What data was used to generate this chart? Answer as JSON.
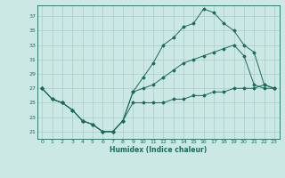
{
  "xlabel": "Humidex (Indice chaleur)",
  "background_color": "#cce8e4",
  "grid_color": "#aaccca",
  "line_color": "#1a6b5a",
  "xlim": [
    -0.5,
    23.5
  ],
  "ylim": [
    20.0,
    38.5
  ],
  "xticks": [
    0,
    1,
    2,
    3,
    4,
    5,
    6,
    7,
    8,
    9,
    10,
    11,
    12,
    13,
    14,
    15,
    16,
    17,
    18,
    19,
    20,
    21,
    22,
    23
  ],
  "yticks": [
    21,
    23,
    25,
    27,
    29,
    31,
    33,
    35,
    37
  ],
  "hours": [
    0,
    1,
    2,
    3,
    4,
    5,
    6,
    7,
    8,
    9,
    10,
    11,
    12,
    13,
    14,
    15,
    16,
    17,
    18,
    19,
    20,
    21,
    22,
    23
  ],
  "line_max": [
    27,
    25.5,
    25,
    24,
    22.5,
    22,
    21,
    21,
    22.5,
    26.5,
    28.5,
    30.5,
    33,
    34,
    35.5,
    36,
    38,
    37.5,
    36,
    35,
    33,
    32,
    27.5,
    27
  ],
  "line_min": [
    27,
    25.5,
    25,
    24,
    22.5,
    22,
    21,
    21,
    22.5,
    25,
    25,
    25,
    25,
    25.5,
    25.5,
    26,
    26,
    26.5,
    26.5,
    27,
    27,
    27,
    27.5,
    27
  ],
  "line_mean": [
    27,
    25.5,
    25,
    24,
    22.5,
    22,
    21,
    21,
    22.5,
    26.5,
    27,
    27.5,
    28.5,
    29.5,
    30.5,
    31,
    31.5,
    32,
    32.5,
    33,
    31.5,
    27.5,
    27,
    27
  ]
}
